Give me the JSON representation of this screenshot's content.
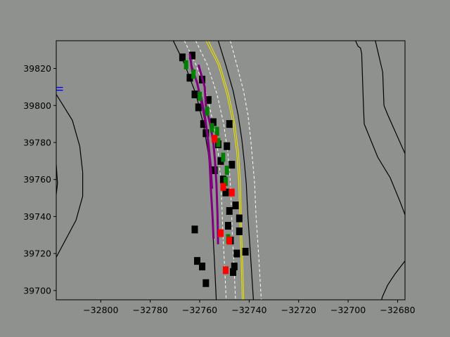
{
  "chart_data": {
    "type": "scatter",
    "title": "",
    "xlabel": "",
    "ylabel": "",
    "xlim": [
      -32818,
      -32677
    ],
    "ylim": [
      39695,
      39835
    ],
    "grid": false,
    "x_ticks": [
      -32800,
      -32780,
      -32760,
      -32740,
      -32720,
      -32700,
      -32680
    ],
    "y_ticks": [
      39700,
      39720,
      39740,
      39760,
      39780,
      39800,
      39820
    ],
    "x_tick_labels": [
      "−32800",
      "−32780",
      "−32760",
      "−32740",
      "−32720",
      "−32700",
      "−32680"
    ],
    "y_tick_labels": [
      "39700",
      "39720",
      "39740",
      "39760",
      "39780",
      "39800",
      "39820"
    ],
    "colors": {
      "background": "#8f918e",
      "road_edge": "#000000",
      "lane_divider": "#ffffff",
      "center_line": "#e8e000",
      "ego_trajectory": "#800080",
      "vehicle": "#000000",
      "predicted_vehicle": "#008000",
      "selected_vehicle": "#ff0000",
      "marker": "#0000ff"
    },
    "road_edges": [
      [
        [
          -32770.7,
          39835
        ],
        [
          -32766,
          39822
        ],
        [
          -32761.5,
          39806
        ],
        [
          -32758.5,
          39790
        ],
        [
          -32756.5,
          39774
        ],
        [
          -32755.5,
          39760
        ],
        [
          -32755,
          39745
        ],
        [
          -32754.6,
          39730
        ],
        [
          -32754,
          39715
        ],
        [
          -32753.3,
          39695
        ]
      ],
      [
        [
          -32752.5,
          39835
        ],
        [
          -32749.5,
          39822
        ],
        [
          -32746.5,
          39808
        ],
        [
          -32744.5,
          39795
        ],
        [
          -32743,
          39782
        ],
        [
          -32742,
          39770
        ],
        [
          -32741.2,
          39758
        ],
        [
          -32740.5,
          39740
        ],
        [
          -32739.6,
          39722
        ],
        [
          -32738.3,
          39695
        ]
      ],
      [
        [
          -32818,
          39806
        ],
        [
          -32811.5,
          39792
        ],
        [
          -32808.5,
          39778
        ],
        [
          -32807.3,
          39764
        ],
        [
          -32807.3,
          39751
        ],
        [
          -32810,
          39738
        ],
        [
          -32818,
          39718
        ]
      ],
      [
        [
          -32818,
          39768
        ],
        [
          -32817.5,
          39758
        ],
        [
          -32818,
          39752
        ]
      ],
      [
        [
          -32697,
          39835
        ],
        [
          -32696,
          39832
        ],
        [
          -32695,
          39831
        ],
        [
          -32694.5,
          39828
        ],
        [
          -32693.8,
          39800
        ],
        [
          -32693.5,
          39790
        ],
        [
          -32688,
          39772
        ],
        [
          -32683,
          39761
        ],
        [
          -32679,
          39748
        ],
        [
          -32677,
          39741
        ]
      ],
      [
        [
          -32689,
          39835
        ],
        [
          -32686,
          39818
        ],
        [
          -32685.5,
          39800
        ],
        [
          -32684,
          39795
        ],
        [
          -32677,
          39774
        ]
      ],
      [
        [
          -32677,
          39716
        ],
        [
          -32681,
          39709
        ],
        [
          -32684,
          39703
        ],
        [
          -32686,
          39697
        ],
        [
          -32686.5,
          39695
        ]
      ]
    ],
    "lane_dividers": [
      [
        [
          -32766.2,
          39835
        ],
        [
          -32761.5,
          39822
        ],
        [
          -32757.2,
          39806
        ],
        [
          -32754.4,
          39790
        ],
        [
          -32752.5,
          39774
        ],
        [
          -32751.5,
          39760
        ],
        [
          -32751,
          39745
        ],
        [
          -32750.6,
          39730
        ],
        [
          -32750,
          39715
        ],
        [
          -32749.3,
          39695
        ]
      ],
      [
        [
          -32761.6,
          39835
        ],
        [
          -32756.9,
          39822
        ],
        [
          -32753,
          39806
        ],
        [
          -32750.3,
          39790
        ],
        [
          -32748.6,
          39774
        ],
        [
          -32747.7,
          39760
        ],
        [
          -32747.2,
          39745
        ],
        [
          -32746.8,
          39730
        ],
        [
          -32746.2,
          39715
        ],
        [
          -32745.5,
          39695
        ]
      ],
      [
        [
          -32747.6,
          39835
        ],
        [
          -32745,
          39822
        ],
        [
          -32742.3,
          39808
        ],
        [
          -32740.5,
          39795
        ],
        [
          -32739.4,
          39782
        ],
        [
          -32738.6,
          39770
        ],
        [
          -32737.8,
          39758
        ],
        [
          -32737.2,
          39740
        ],
        [
          -32736.3,
          39722
        ],
        [
          -32735.1,
          39695
        ]
      ]
    ],
    "center_lines": [
      [
        [
          -32757.5,
          39835
        ],
        [
          -32752.5,
          39822
        ],
        [
          -32749,
          39806
        ],
        [
          -32746.5,
          39790
        ],
        [
          -32745,
          39774
        ],
        [
          -32744.3,
          39760
        ],
        [
          -32743.9,
          39745
        ],
        [
          -32743.6,
          39730
        ],
        [
          -32743.2,
          39715
        ],
        [
          -32742.8,
          39695
        ]
      ],
      [
        [
          -32756.5,
          39835
        ],
        [
          -32751.8,
          39822
        ],
        [
          -32748.3,
          39806
        ],
        [
          -32745.8,
          39790
        ],
        [
          -32744.3,
          39774
        ],
        [
          -32743.6,
          39760
        ],
        [
          -32743.3,
          39745
        ],
        [
          -32743,
          39730
        ],
        [
          -32742.6,
          39715
        ],
        [
          -32742.2,
          39695
        ]
      ]
    ],
    "ego_trajectories": [
      [
        [
          -32760.5,
          39822
        ],
        [
          -32758,
          39810
        ],
        [
          -32757.5,
          39800
        ],
        [
          -32755.8,
          39790
        ],
        [
          -32754.5,
          39780
        ],
        [
          -32753.8,
          39770
        ],
        [
          -32753.2,
          39757
        ],
        [
          -32752.8,
          39740
        ],
        [
          -32752.6,
          39725
        ]
      ],
      [
        [
          -32763.5,
          39822
        ],
        [
          -32761,
          39812
        ],
        [
          -32759,
          39800
        ],
        [
          -32757.5,
          39790
        ],
        [
          -32756.5,
          39780
        ],
        [
          -32755.6,
          39768
        ],
        [
          -32755,
          39755
        ]
      ],
      [
        [
          -32759.5,
          39805
        ],
        [
          -32758,
          39795
        ],
        [
          -32756.8,
          39783
        ],
        [
          -32756,
          39770
        ],
        [
          -32755.5,
          39755
        ],
        [
          -32754.8,
          39740
        ],
        [
          -32754.4,
          39728
        ]
      ],
      [
        [
          -32764,
          39828
        ],
        [
          -32763,
          39818
        ]
      ]
    ],
    "vehicles": [
      [
        -32767,
        39826
      ],
      [
        -32763,
        39827
      ],
      [
        -32764,
        39815
      ],
      [
        -32759,
        39814
      ],
      [
        -32762,
        39806
      ],
      [
        -32756.5,
        39803
      ],
      [
        -32760.5,
        39799
      ],
      [
        -32758.5,
        39790
      ],
      [
        -32754.5,
        39791
      ],
      [
        -32757.5,
        39785
      ],
      [
        -32752.5,
        39779
      ],
      [
        -32749,
        39778
      ],
      [
        -32751.5,
        39770
      ],
      [
        -32747,
        39768
      ],
      [
        -32754,
        39765
      ],
      [
        -32750.5,
        39760
      ],
      [
        -32749.5,
        39753
      ],
      [
        -32745.5,
        39746
      ],
      [
        -32748,
        39743
      ],
      [
        -32744,
        39739
      ],
      [
        -32748.5,
        39735
      ],
      [
        -32744,
        39732
      ],
      [
        -32762,
        39733
      ],
      [
        -32747.5,
        39727
      ],
      [
        -32745,
        39720
      ],
      [
        -32741.5,
        39721
      ],
      [
        -32761,
        39716
      ],
      [
        -32759,
        39713
      ],
      [
        -32746,
        39713
      ],
      [
        -32757.5,
        39704
      ],
      [
        -32746.5,
        39710
      ],
      [
        -32748,
        39790
      ]
    ],
    "predicted_vehicles": [
      [
        -32765.5,
        39822
      ],
      [
        -32762.5,
        39817
      ],
      [
        -32760,
        39805
      ],
      [
        -32757,
        39797
      ],
      [
        -32755,
        39788
      ],
      [
        -32752.5,
        39780
      ],
      [
        -32750.5,
        39772
      ],
      [
        -32749,
        39765
      ],
      [
        -32749.5,
        39759
      ],
      [
        -32753,
        39786
      ],
      [
        -32748.5,
        39728
      ]
    ],
    "selected_vehicles": [
      [
        -32750.5,
        39756
      ],
      [
        -32747,
        39753
      ],
      [
        -32751.5,
        39731
      ],
      [
        -32748,
        39727
      ],
      [
        -32749.5,
        39711
      ],
      [
        -32754,
        39782
      ]
    ],
    "markers": [
      [
        -32817,
        39809
      ]
    ]
  }
}
